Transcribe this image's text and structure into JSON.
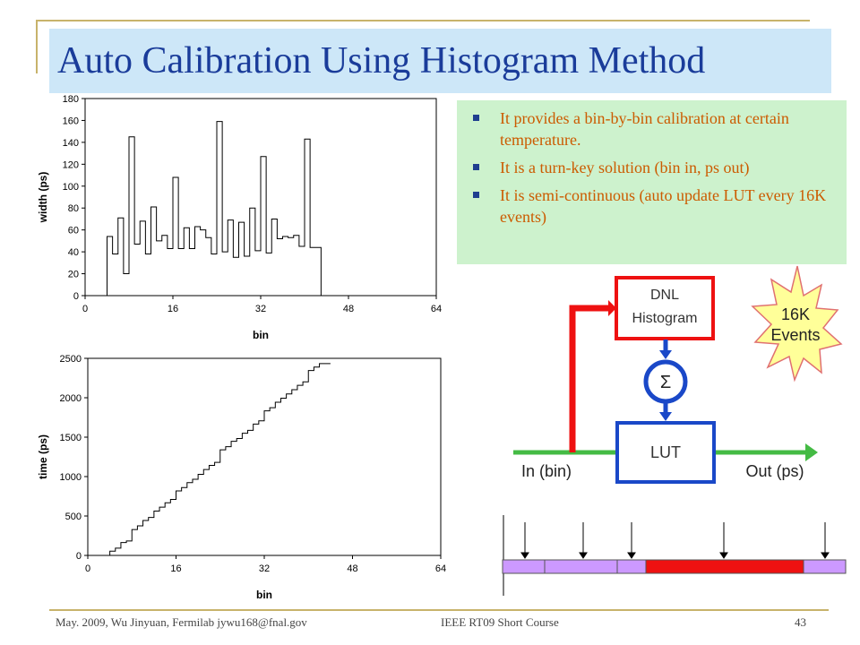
{
  "slide": {
    "title": "Auto Calibration Using Histogram Method",
    "bullets": [
      "It provides a bin-by-bin calibration at certain temperature.",
      "It is a turn-key solution (bin in, ps out)",
      "It is semi-continuous (auto update LUT every 16K events)"
    ],
    "footer": {
      "left": "May. 2009, Wu Jinyuan, Fermilab jywu168@fnal.gov",
      "center": "IEEE RT09 Short Course",
      "page": "43"
    }
  },
  "diagram": {
    "dnl_label_1": "DNL",
    "dnl_label_2": "Histogram",
    "sum_symbol": "Σ",
    "lut_label": "LUT",
    "in_label": "In (bin)",
    "out_label": "Out (ps)",
    "burst_line_1": "16K",
    "burst_line_2": "Events",
    "colors": {
      "red": "#ee1111",
      "blue": "#1a48c8",
      "green": "#44bb44",
      "burst": "#ffff99",
      "cell": "#cc99ff"
    }
  },
  "chart_data": [
    {
      "type": "line",
      "step": true,
      "xlabel": "bin",
      "ylabel": "width (ps)",
      "xlim": [
        0,
        64
      ],
      "ylim": [
        0,
        180
      ],
      "xticks": [
        0,
        16,
        32,
        48,
        64
      ],
      "yticks": [
        0,
        20,
        40,
        60,
        80,
        100,
        120,
        140,
        160,
        180
      ],
      "values": [
        0,
        0,
        0,
        0,
        54,
        38,
        71,
        20,
        145,
        47,
        68,
        38,
        81,
        50,
        55,
        43,
        108,
        43,
        62,
        43,
        63,
        60,
        53,
        38,
        159,
        40,
        69,
        35,
        67,
        36,
        80,
        41,
        127,
        39,
        70,
        52,
        54,
        53,
        55,
        45,
        143,
        44,
        44,
        0,
        0,
        0,
        0,
        0,
        0,
        0,
        0,
        0,
        0,
        0,
        0,
        0,
        0,
        0,
        0,
        0,
        0,
        0,
        0,
        0
      ]
    },
    {
      "type": "line",
      "step": true,
      "xlabel": "bin",
      "ylabel": "time (ps)",
      "xlim": [
        0,
        64
      ],
      "ylim": [
        0,
        2500
      ],
      "xticks": [
        0,
        16,
        32,
        48,
        64
      ],
      "yticks": [
        0,
        500,
        1000,
        1500,
        2000,
        2500
      ],
      "cumulative_of_previous": true
    }
  ]
}
